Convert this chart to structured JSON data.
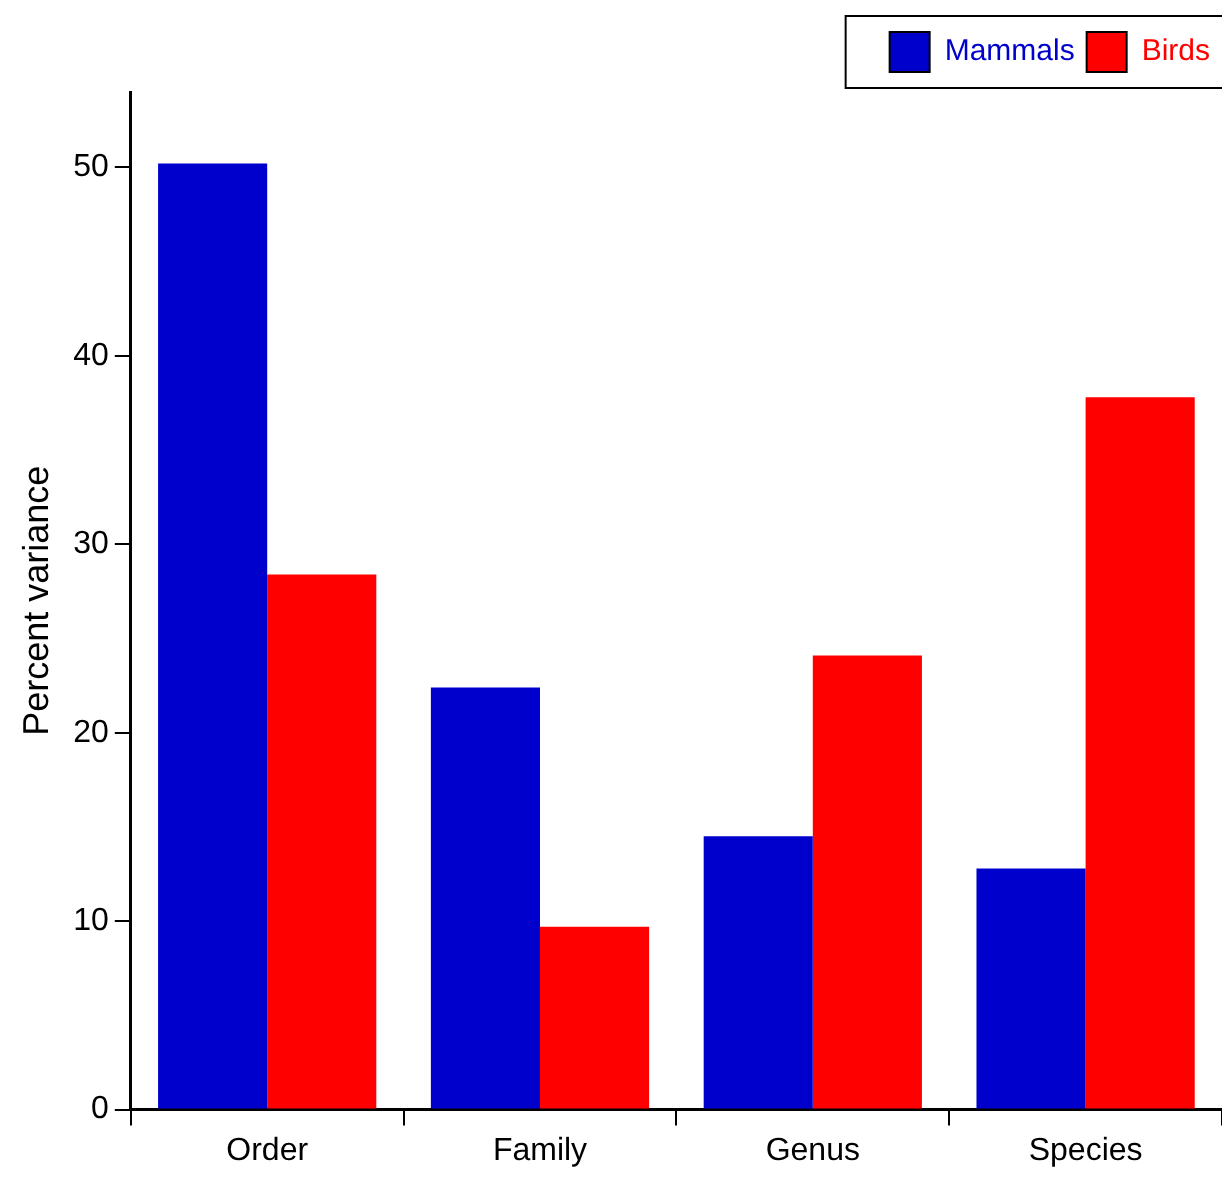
{
  "chart_data": {
    "type": "bar",
    "ylabel": "Percent variance",
    "categories": [
      "Order",
      "Family",
      "Genus",
      "Species"
    ],
    "series": [
      {
        "name": "Mammals",
        "color": "#0000cc",
        "values": [
          50.2,
          22.4,
          14.5,
          12.8
        ]
      },
      {
        "name": "Birds",
        "color": "#ff0000",
        "values": [
          28.4,
          9.7,
          24.1,
          37.8
        ]
      }
    ],
    "ylim": [
      0,
      54
    ],
    "yticks": [
      0,
      10,
      20,
      30,
      40,
      50
    ],
    "grid": false,
    "legend": "top right"
  }
}
